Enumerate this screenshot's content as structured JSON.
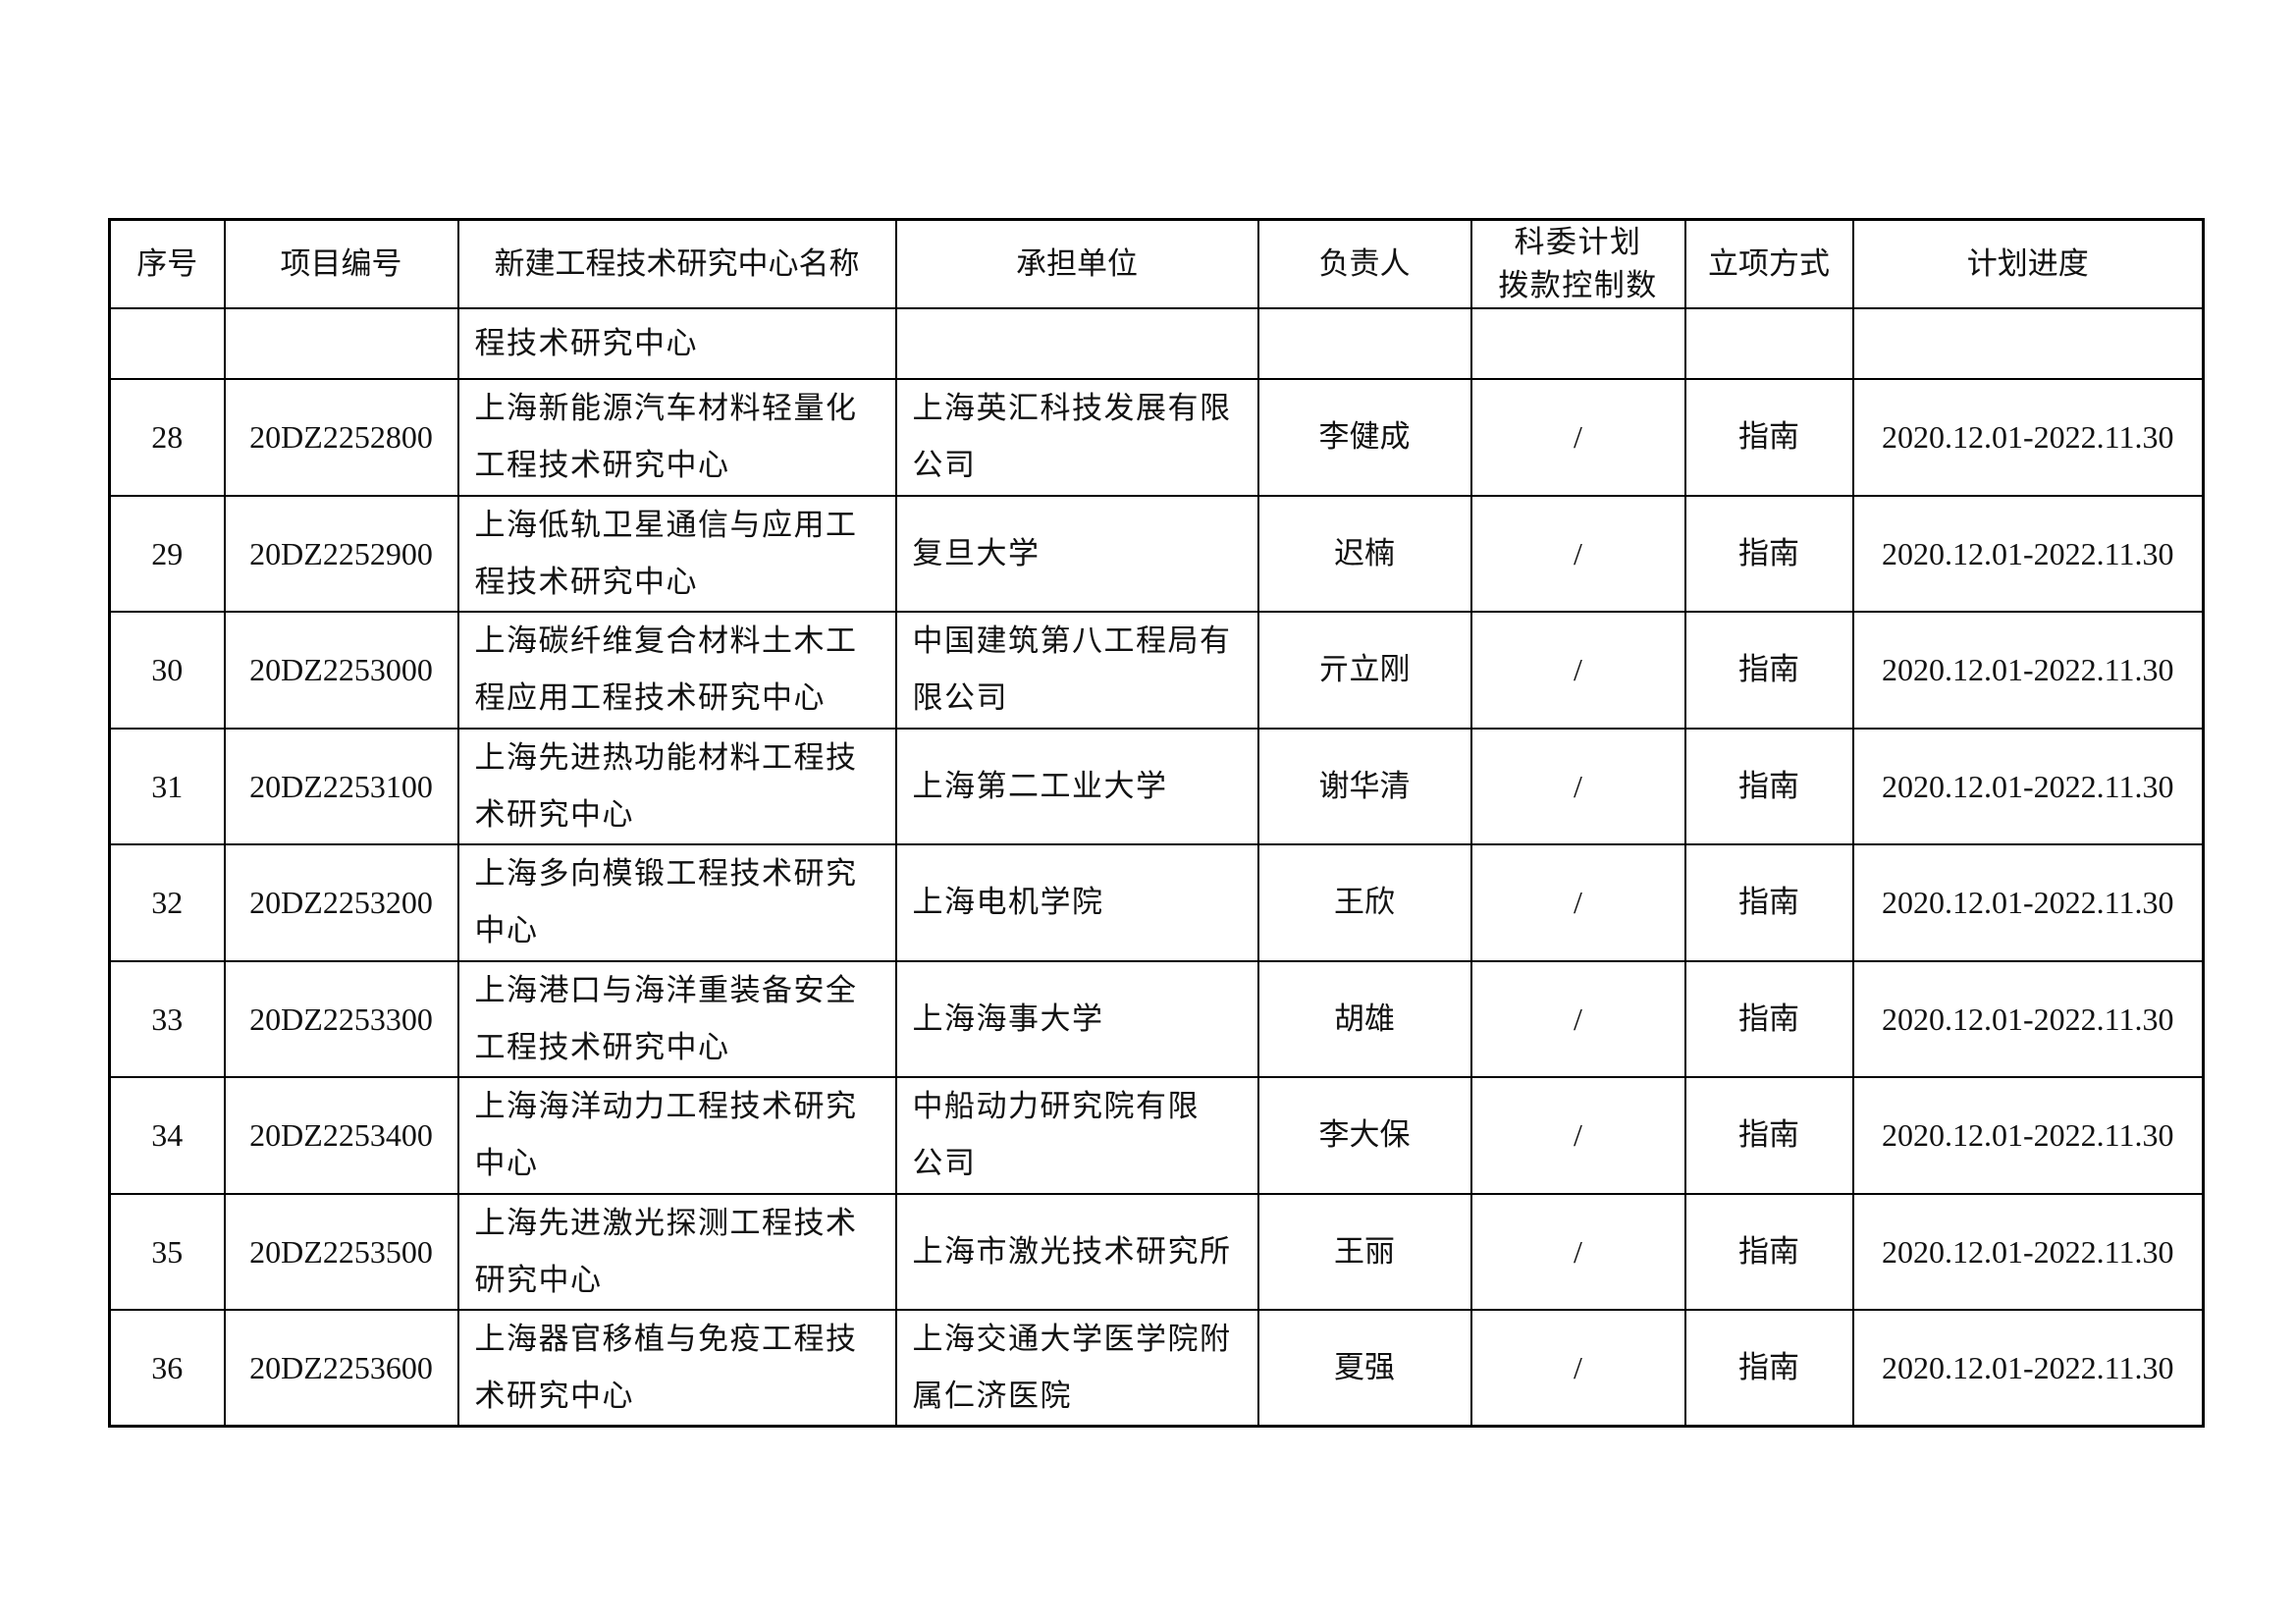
{
  "headers": [
    "序号",
    "项目编号",
    "新建工程技术研究中心名称",
    "承担单位",
    "负责人",
    "科委计划拨款控制数",
    "立项方式",
    "计划进度"
  ],
  "header_funding_lines": [
    "科委计划",
    "拨款控制数"
  ],
  "continuation": {
    "name_lines": [
      "程技术研究中心"
    ]
  },
  "rows": [
    {
      "no": "28",
      "code": "20DZ2252800",
      "name_lines": [
        "上海新能源汽车材料轻量化",
        "工程技术研究中心"
      ],
      "unit_lines": [
        "上海英汇科技发展有限",
        "公司"
      ],
      "leader": "李健成",
      "funding": "/",
      "method": "指南",
      "schedule": "2020.12.01-2022.11.30"
    },
    {
      "no": "29",
      "code": "20DZ2252900",
      "name_lines": [
        "上海低轨卫星通信与应用工",
        "程技术研究中心"
      ],
      "unit_lines": [
        "复旦大学"
      ],
      "leader": "迟楠",
      "funding": "/",
      "method": "指南",
      "schedule": "2020.12.01-2022.11.30"
    },
    {
      "no": "30",
      "code": "20DZ2253000",
      "name_lines": [
        "上海碳纤维复合材料土木工",
        "程应用工程技术研究中心"
      ],
      "unit_lines": [
        "中国建筑第八工程局有",
        "限公司"
      ],
      "leader": "亓立刚",
      "funding": "/",
      "method": "指南",
      "schedule": "2020.12.01-2022.11.30"
    },
    {
      "no": "31",
      "code": "20DZ2253100",
      "name_lines": [
        "上海先进热功能材料工程技",
        "术研究中心"
      ],
      "unit_lines": [
        "上海第二工业大学"
      ],
      "leader": "谢华清",
      "funding": "/",
      "method": "指南",
      "schedule": "2020.12.01-2022.11.30"
    },
    {
      "no": "32",
      "code": "20DZ2253200",
      "name_lines": [
        "上海多向模锻工程技术研究",
        "中心"
      ],
      "unit_lines": [
        "上海电机学院"
      ],
      "leader": "王欣",
      "funding": "/",
      "method": "指南",
      "schedule": "2020.12.01-2022.11.30"
    },
    {
      "no": "33",
      "code": "20DZ2253300",
      "name_lines": [
        "上海港口与海洋重装备安全",
        "工程技术研究中心"
      ],
      "unit_lines": [
        "上海海事大学"
      ],
      "leader": "胡雄",
      "funding": "/",
      "method": "指南",
      "schedule": "2020.12.01-2022.11.30"
    },
    {
      "no": "34",
      "code": "20DZ2253400",
      "name_lines": [
        "上海海洋动力工程技术研究",
        "中心"
      ],
      "unit_lines": [
        "中船动力研究院有限",
        "公司"
      ],
      "leader": "李大保",
      "funding": "/",
      "method": "指南",
      "schedule": "2020.12.01-2022.11.30"
    },
    {
      "no": "35",
      "code": "20DZ2253500",
      "name_lines": [
        "上海先进激光探测工程技术",
        "研究中心"
      ],
      "unit_lines": [
        "上海市激光技术研究所"
      ],
      "leader": "王丽",
      "funding": "/",
      "method": "指南",
      "schedule": "2020.12.01-2022.11.30"
    },
    {
      "no": "36",
      "code": "20DZ2253600",
      "name_lines": [
        "上海器官移植与免疫工程技",
        "术研究中心"
      ],
      "unit_lines": [
        "上海交通大学医学院附",
        "属仁济医院"
      ],
      "leader": "夏强",
      "funding": "/",
      "method": "指南",
      "schedule": "2020.12.01-2022.11.30"
    }
  ]
}
